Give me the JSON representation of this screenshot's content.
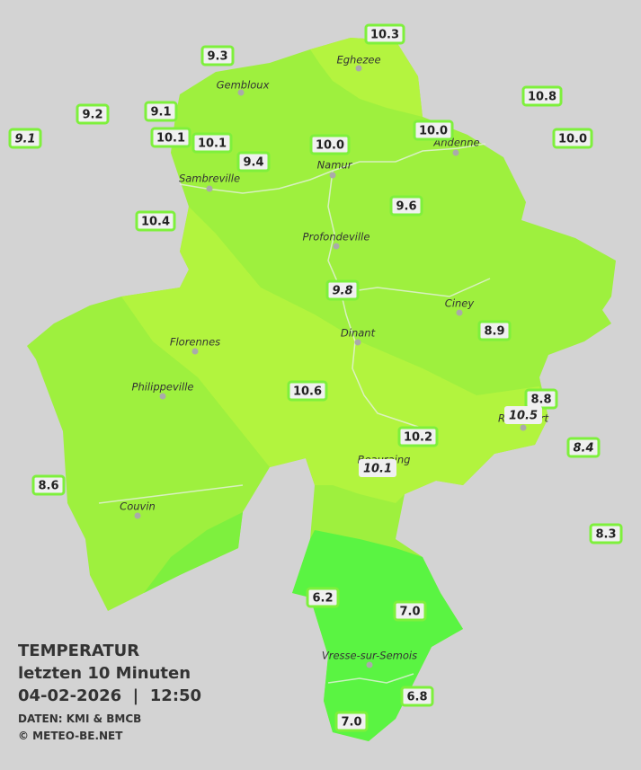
{
  "legend": {
    "title": "TEMPERATUR",
    "subtitle": "letzten 10 Minuten",
    "datetime": "04-02-2026  |  12:50",
    "source": "DATEN: KMI & BMCB",
    "copyright": "© METEO-BE.NET"
  },
  "towns": [
    "Eghezee",
    "Gembloux",
    "Andenne",
    "Namur",
    "Sambreville",
    "Profondeville",
    "Ciney",
    "Dinant",
    "Florennes",
    "Philippeville",
    "Rochefort",
    "Beauraing",
    "Couvin",
    "Vresse-sur-Semois"
  ],
  "stations": [
    {
      "value": "10.3",
      "italic": false
    },
    {
      "value": "9.3",
      "italic": false
    },
    {
      "value": "10.8",
      "italic": false
    },
    {
      "value": "9.2",
      "italic": false
    },
    {
      "value": "9.1",
      "italic": false
    },
    {
      "value": "9.1",
      "italic": true
    },
    {
      "value": "10.1",
      "italic": false
    },
    {
      "value": "10.1",
      "italic": false
    },
    {
      "value": "10.0",
      "italic": false
    },
    {
      "value": "10.0",
      "italic": false
    },
    {
      "value": "10.0",
      "italic": false
    },
    {
      "value": "9.4",
      "italic": false
    },
    {
      "value": "10.4",
      "italic": false
    },
    {
      "value": "9.6",
      "italic": false
    },
    {
      "value": "9.8",
      "italic": true
    },
    {
      "value": "8.9",
      "italic": false
    },
    {
      "value": "10.6",
      "italic": false
    },
    {
      "value": "8.8",
      "italic": false
    },
    {
      "value": "10.5",
      "italic": true
    },
    {
      "value": "8.4",
      "italic": true
    },
    {
      "value": "10.2",
      "italic": false
    },
    {
      "value": "10.1",
      "italic": true
    },
    {
      "value": "8.6",
      "italic": false
    },
    {
      "value": "8.3",
      "italic": false
    },
    {
      "value": "6.2",
      "italic": false
    },
    {
      "value": "7.0",
      "italic": false
    },
    {
      "value": "6.8",
      "italic": false
    },
    {
      "value": "7.0",
      "italic": false
    }
  ]
}
